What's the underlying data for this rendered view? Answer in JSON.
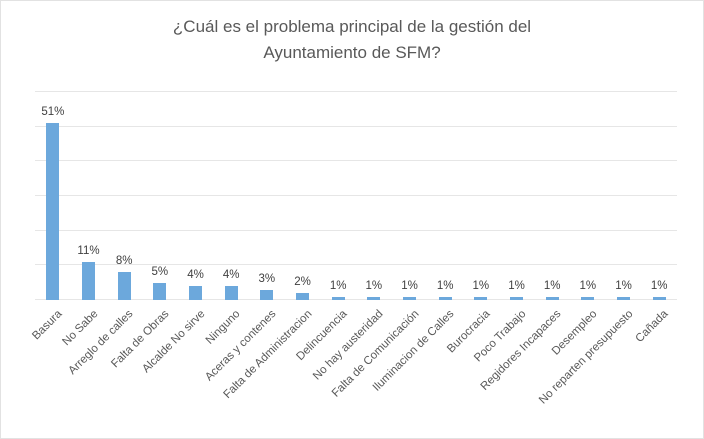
{
  "chart": {
    "title_lines": [
      "¿Cuál es el problema principal de la gestión del",
      "Ayuntamiento de SFM?"
    ]
  },
  "chart_data": {
    "type": "bar",
    "title": "¿Cuál es el problema principal de la gestión del Ayuntamiento de SFM?",
    "categories": [
      "Basura",
      "No Sabe",
      "Arreglo de calles",
      "Falta de Obras",
      "Alcalde No sirve",
      "Ninguno",
      "Aceras y contenes",
      "Falta de Administracion",
      "Delincuencia",
      "No hay austeridad",
      "Falta de Comunicación",
      "Iluminacion de Calles",
      "Burocracia",
      "Poco Trabajo",
      "Regidores Incapaces",
      "Desempleo",
      "No reparten presupuesto",
      "Cañada"
    ],
    "values": [
      51,
      11,
      8,
      5,
      4,
      4,
      3,
      2,
      1,
      1,
      1,
      1,
      1,
      1,
      1,
      1,
      1,
      1
    ],
    "unit": "%",
    "xlabel": "",
    "ylabel": "",
    "ylim": [
      0,
      60
    ],
    "ytick_step": 10,
    "grid": true,
    "legend": false,
    "y_axis_labels_visible": false,
    "bar_color": "#6CA8DC",
    "gridline_color": "#e6e6e6",
    "title_color": "#595959",
    "label_color": "#404040"
  }
}
